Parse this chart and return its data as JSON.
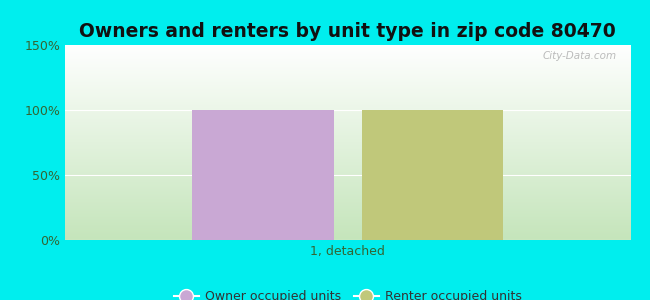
{
  "title": "Owners and renters by unit type in zip code 80470",
  "categories": [
    "1, detached"
  ],
  "owner_values": [
    100
  ],
  "renter_values": [
    100
  ],
  "owner_color": "#c9a8d4",
  "renter_color": "#c0c87a",
  "ylim": [
    0,
    150
  ],
  "yticks": [
    0,
    50,
    100,
    150
  ],
  "ytick_labels": [
    "0%",
    "50%",
    "100%",
    "150%"
  ],
  "outer_bg": "#00eeee",
  "plot_bg_top": "#ffffff",
  "plot_bg_bottom": "#c5e5bb",
  "title_fontsize": 13.5,
  "label_fontsize": 9,
  "legend_fontsize": 9,
  "watermark": "City-Data.com",
  "bar_width": 0.25,
  "bar_gap": 0.05
}
